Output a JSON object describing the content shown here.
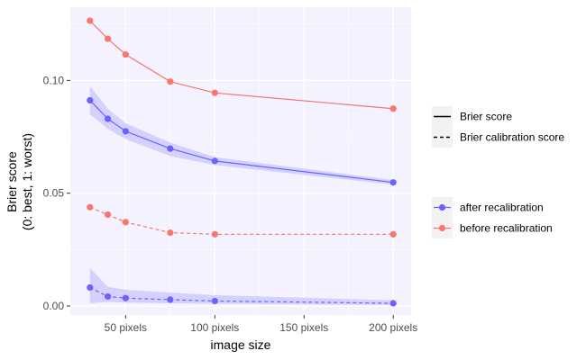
{
  "chart_data": {
    "type": "line",
    "title": "",
    "xlabel": "image size",
    "ylabel_lines": [
      "Brier score",
      "(0: best, 1: worst)"
    ],
    "x_ticks": [
      {
        "value": 50,
        "label": "50 pixels"
      },
      {
        "value": 100,
        "label": "100 pixels"
      },
      {
        "value": 150,
        "label": "150 pixels"
      },
      {
        "value": 200,
        "label": "200 pixels"
      }
    ],
    "y_ticks": [
      {
        "value": 0.0,
        "label": "0.00"
      },
      {
        "value": 0.05,
        "label": "0.05"
      },
      {
        "value": 0.1,
        "label": "0.10"
      }
    ],
    "xlim": [
      19,
      210
    ],
    "ylim": [
      -0.004,
      0.1325
    ],
    "x": [
      30,
      40,
      50,
      75,
      100,
      200
    ],
    "series": [
      {
        "metric": "Brier score",
        "group": "before recalibration",
        "color": "#F8766D",
        "dash": "solid",
        "values": [
          0.1265,
          0.1185,
          0.1115,
          0.0995,
          0.0945,
          0.0875
        ]
      },
      {
        "metric": "Brier score",
        "group": "after recalibration",
        "color": "#6C63FF",
        "dash": "solid",
        "values": [
          0.0912,
          0.083,
          0.0775,
          0.0698,
          0.0643,
          0.0548
        ],
        "ribbon_low": [
          0.085,
          0.0785,
          0.074,
          0.0665,
          0.0625,
          0.0538
        ],
        "ribbon_high": [
          0.0975,
          0.0875,
          0.081,
          0.0725,
          0.066,
          0.0558
        ]
      },
      {
        "metric": "Brier calibration score",
        "group": "before recalibration",
        "color": "#F8766D",
        "dash": "dashed",
        "values": [
          0.0438,
          0.0405,
          0.0372,
          0.0325,
          0.0318,
          0.0318
        ]
      },
      {
        "metric": "Brier calibration score",
        "group": "after recalibration",
        "color": "#6C63FF",
        "dash": "dashed",
        "values": [
          0.0082,
          0.0042,
          0.0035,
          0.0028,
          0.0022,
          0.0012
        ],
        "ribbon_low": [
          0.0012,
          0.0018,
          0.0015,
          0.0012,
          0.001,
          0.0004
        ],
        "ribbon_high": [
          0.0168,
          0.0085,
          0.0072,
          0.006,
          0.0048,
          0.0025
        ]
      }
    ],
    "legend_linetype": [
      {
        "label": "Brier score",
        "dash": "solid"
      },
      {
        "label": "Brier calibration score",
        "dash": "dashed"
      }
    ],
    "legend_color": [
      {
        "label": "after recalibration",
        "color": "#6C63FF"
      },
      {
        "label": "before recalibration",
        "color": "#F8766D"
      }
    ],
    "legend_placement": "right",
    "grid": true,
    "panel_color": "#F4F2FF",
    "ribbon_color": "#D2CFFF"
  }
}
